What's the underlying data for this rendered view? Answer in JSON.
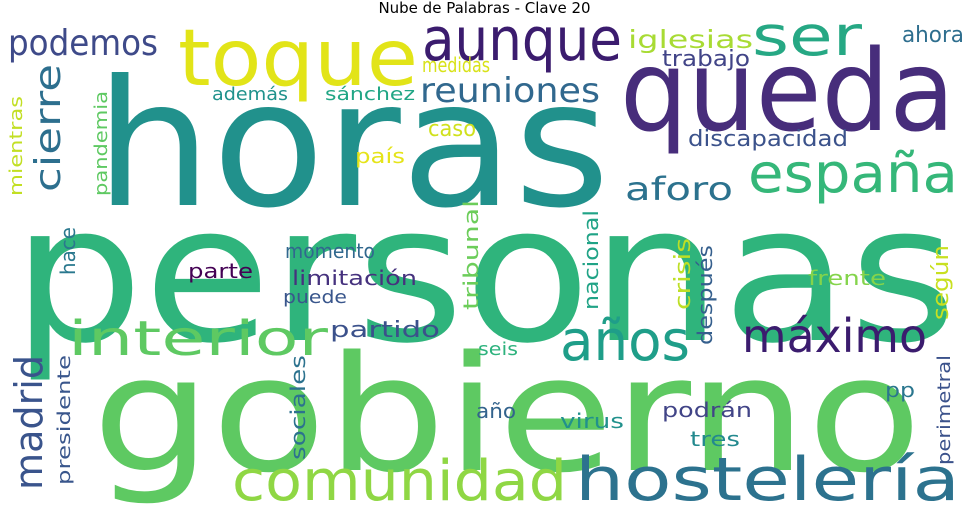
{
  "title": "Nube de Palabras - Clave 20",
  "words": [
    {
      "text": "personas",
      "color": "#2fb47c"
    },
    {
      "text": "horas",
      "color": "#21918c"
    },
    {
      "text": "gobierno",
      "color": "#5ec962"
    },
    {
      "text": "queda",
      "color": "#472d7b"
    },
    {
      "text": "toque",
      "color": "#e2e418"
    },
    {
      "text": "aunque",
      "color": "#3b1c6e"
    },
    {
      "text": "ser",
      "color": "#26a884"
    },
    {
      "text": "podemos",
      "color": "#3e4a89"
    },
    {
      "text": "españa",
      "color": "#35b779"
    },
    {
      "text": "comunidad",
      "color": "#8fd744"
    },
    {
      "text": "hostelería",
      "color": "#2c728e"
    },
    {
      "text": "interior",
      "color": "#5ec962"
    },
    {
      "text": "años",
      "color": "#1f9e89"
    },
    {
      "text": "máximo",
      "color": "#3b1c6e"
    },
    {
      "text": "reuniones",
      "color": "#31688e"
    },
    {
      "text": "aforo",
      "color": "#2c728e"
    },
    {
      "text": "cierre",
      "color": "#2d6f8e"
    },
    {
      "text": "madrid",
      "color": "#3a548c"
    },
    {
      "text": "iglesias",
      "color": "#a8db34"
    },
    {
      "text": "trabajo",
      "color": "#414487"
    },
    {
      "text": "ahora",
      "color": "#2e6e8e"
    },
    {
      "text": "medidas",
      "color": "#d8e219"
    },
    {
      "text": "además",
      "color": "#20928c"
    },
    {
      "text": "sánchez",
      "color": "#21a685"
    },
    {
      "text": "caso",
      "color": "#d0e11c"
    },
    {
      "text": "discapacidad",
      "color": "#3b528b"
    },
    {
      "text": "país",
      "color": "#e5e419"
    },
    {
      "text": "mientras",
      "color": "#c2df23"
    },
    {
      "text": "pandemia",
      "color": "#5ec962"
    },
    {
      "text": "hace",
      "color": "#2a788e"
    },
    {
      "text": "momento",
      "color": "#31688e"
    },
    {
      "text": "parte",
      "color": "#440154"
    },
    {
      "text": "limitación",
      "color": "#46327e"
    },
    {
      "text": "puede",
      "color": "#39568c"
    },
    {
      "text": "tribunal",
      "color": "#6ccd5a"
    },
    {
      "text": "nacional",
      "color": "#20a386"
    },
    {
      "text": "crisis",
      "color": "#bddf26"
    },
    {
      "text": "después",
      "color": "#355f8d"
    },
    {
      "text": "según",
      "color": "#c8e020"
    },
    {
      "text": "frente",
      "color": "#84d44b"
    },
    {
      "text": "partido",
      "color": "#3b518b"
    },
    {
      "text": "seis",
      "color": "#2db27d"
    },
    {
      "text": "presidente",
      "color": "#39568c"
    },
    {
      "text": "sociales",
      "color": "#2c728e"
    },
    {
      "text": "año",
      "color": "#33638d"
    },
    {
      "text": "virus",
      "color": "#21918c"
    },
    {
      "text": "podrán",
      "color": "#414487"
    },
    {
      "text": "pp",
      "color": "#2a768e"
    },
    {
      "text": "perimetral",
      "color": "#3b528b"
    },
    {
      "text": "tres",
      "color": "#23898e"
    }
  ]
}
